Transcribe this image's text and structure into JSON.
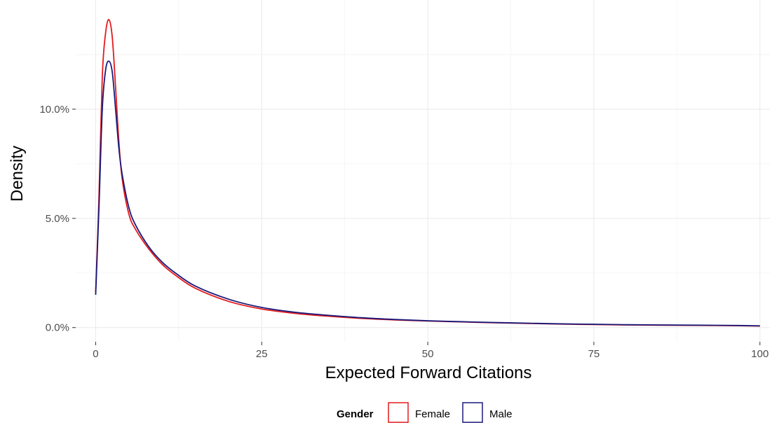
{
  "chart_data": {
    "type": "line",
    "xlabel": "Expected Forward Citations",
    "ylabel": "Density",
    "xlim": [
      -3,
      101.5
    ],
    "ylim": [
      -0.0065,
      0.15
    ],
    "x_ticks": [
      0,
      25,
      50,
      75,
      100
    ],
    "x_tick_labels": [
      "0",
      "25",
      "50",
      "75",
      "100"
    ],
    "y_ticks": [
      0.0,
      0.05,
      0.1
    ],
    "y_tick_labels": [
      "0.0%",
      "5.0%",
      "10.0%"
    ],
    "grid": true,
    "legend": {
      "title": "Gender",
      "position": "bottom"
    },
    "series": [
      {
        "name": "Female",
        "color": "#e41a1c",
        "points": [
          [
            0,
            0.016
          ],
          [
            0.5,
            0.06
          ],
          [
            1,
            0.115
          ],
          [
            1.5,
            0.135
          ],
          [
            2,
            0.141
          ],
          [
            2.5,
            0.133
          ],
          [
            3,
            0.11
          ],
          [
            3.5,
            0.085
          ],
          [
            4,
            0.068
          ],
          [
            5,
            0.052
          ],
          [
            6,
            0.045
          ],
          [
            8,
            0.036
          ],
          [
            10,
            0.029
          ],
          [
            12,
            0.024
          ],
          [
            15,
            0.018
          ],
          [
            20,
            0.012
          ],
          [
            25,
            0.0085
          ],
          [
            30,
            0.0065
          ],
          [
            35,
            0.0052
          ],
          [
            40,
            0.0042
          ],
          [
            45,
            0.0035
          ],
          [
            50,
            0.003
          ],
          [
            55,
            0.0026
          ],
          [
            60,
            0.0022
          ],
          [
            65,
            0.0019
          ],
          [
            70,
            0.0016
          ],
          [
            75,
            0.0014
          ],
          [
            80,
            0.0012
          ],
          [
            85,
            0.0011
          ],
          [
            90,
            0.001
          ],
          [
            95,
            0.0009
          ],
          [
            100,
            0.0007
          ]
        ]
      },
      {
        "name": "Male",
        "color": "#1a1a7a",
        "points": [
          [
            0,
            0.015
          ],
          [
            0.5,
            0.055
          ],
          [
            1,
            0.1
          ],
          [
            1.5,
            0.118
          ],
          [
            2,
            0.122
          ],
          [
            2.5,
            0.117
          ],
          [
            3,
            0.1
          ],
          [
            3.5,
            0.082
          ],
          [
            4,
            0.07
          ],
          [
            5,
            0.055
          ],
          [
            6,
            0.047
          ],
          [
            8,
            0.037
          ],
          [
            10,
            0.03
          ],
          [
            12,
            0.025
          ],
          [
            15,
            0.019
          ],
          [
            20,
            0.013
          ],
          [
            25,
            0.0092
          ],
          [
            30,
            0.007
          ],
          [
            35,
            0.0056
          ],
          [
            40,
            0.0045
          ],
          [
            45,
            0.0037
          ],
          [
            50,
            0.0031
          ],
          [
            55,
            0.0027
          ],
          [
            60,
            0.0023
          ],
          [
            65,
            0.002
          ],
          [
            70,
            0.0017
          ],
          [
            75,
            0.0015
          ],
          [
            80,
            0.0013
          ],
          [
            85,
            0.0012
          ],
          [
            90,
            0.0011
          ],
          [
            95,
            0.001
          ],
          [
            100,
            0.0008
          ]
        ]
      }
    ]
  }
}
